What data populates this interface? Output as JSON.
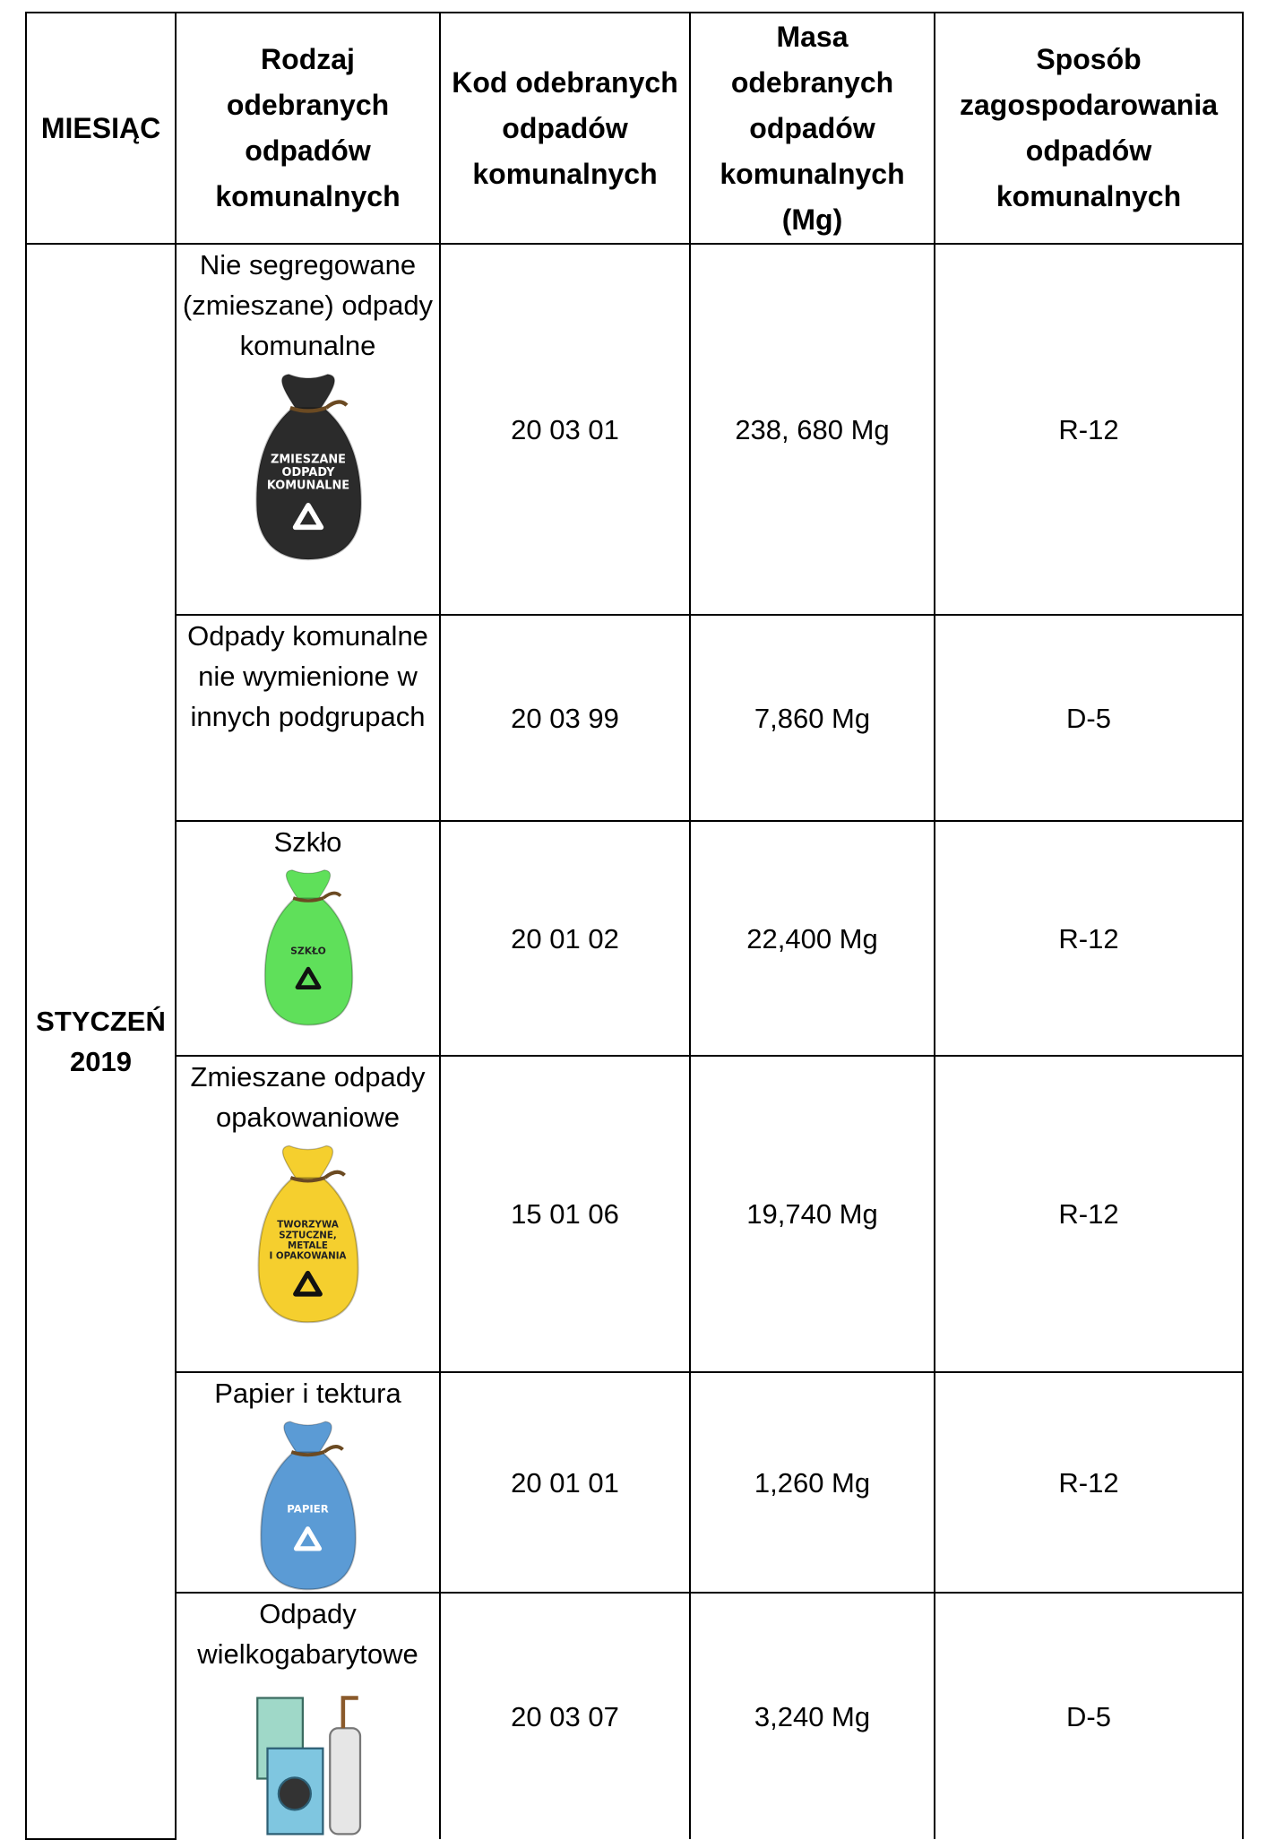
{
  "header": {
    "columns": [
      "MIESIĄC",
      "Rodzaj odebranych odpadów komunalnych",
      "Kod odebranych odpadów komunalnych",
      "Masa odebranych odpadów komunalnych (Mg)",
      "Sposób zagospodarowania odpadów komunalnych"
    ]
  },
  "table": {
    "month": "STYCZEŃ 2019",
    "rows": [
      {
        "type": "Nie segregowane (zmieszane) odpady komunalne",
        "icon_label": [
          "ZMIESZANE",
          "ODPADY",
          "KOMUNALNE"
        ],
        "icon_color": "#2b2b2b",
        "code": "20 03 01",
        "mass": "238, 680 Mg",
        "method": "R-12"
      },
      {
        "type": "Odpady komunalne nie wymienione w innych podgrupach",
        "code": "20 03 99",
        "mass": "7,860 Mg",
        "method": "D-5"
      },
      {
        "type": "Szkło",
        "icon_label": [
          "SZKŁO"
        ],
        "icon_color": "#5fe05a",
        "code": "20 01 02",
        "mass": "22,400 Mg",
        "method": "R-12"
      },
      {
        "type": "Zmieszane odpady opakowaniowe",
        "icon_label": [
          "TWORZYWA",
          "SZTUCZNE,",
          "METALE",
          "I OPAKOWANIA"
        ],
        "icon_color": "#f5cf2e",
        "code": "15 01 06",
        "mass": "19,740 Mg",
        "method": "R-12"
      },
      {
        "type": "Papier i tektura",
        "icon_label": [
          "PAPIER"
        ],
        "icon_color": "#5b9bd5",
        "code": "20 01 01",
        "mass": "1,260 Mg",
        "method": "R-12"
      },
      {
        "type": "Odpady wielkogabarytowe",
        "code": "20 03 07",
        "mass": "3,240 Mg",
        "method": "D-5"
      }
    ]
  }
}
